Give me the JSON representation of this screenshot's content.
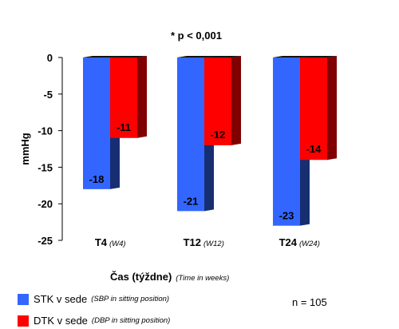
{
  "chart_data": {
    "type": "bar",
    "annotation": "* p < 0,001",
    "categories": [
      {
        "label": "T4",
        "sub": "(W4)"
      },
      {
        "label": "T12",
        "sub": "(W12)"
      },
      {
        "label": "T24",
        "sub": "(W24)"
      }
    ],
    "series": [
      {
        "name": "STK v sede",
        "sub": "(SBP in sitting position)",
        "color": "#3366ff",
        "values": [
          -18,
          -21,
          -23
        ]
      },
      {
        "name": "DTK v sede",
        "sub": "(DBP in sitting position)",
        "color": "#ff0000",
        "values": [
          -11,
          -12,
          -14
        ]
      }
    ],
    "ylabel": "mmHg",
    "xlabel": "Čas (týždne)",
    "xlabel_sub": "(Time in weeks)",
    "yticks": [
      "0",
      "-5",
      "-10",
      "-15",
      "-20",
      "-25"
    ],
    "ylim": [
      -25,
      0
    ],
    "note": "n = 105",
    "bar_style": "3d"
  }
}
